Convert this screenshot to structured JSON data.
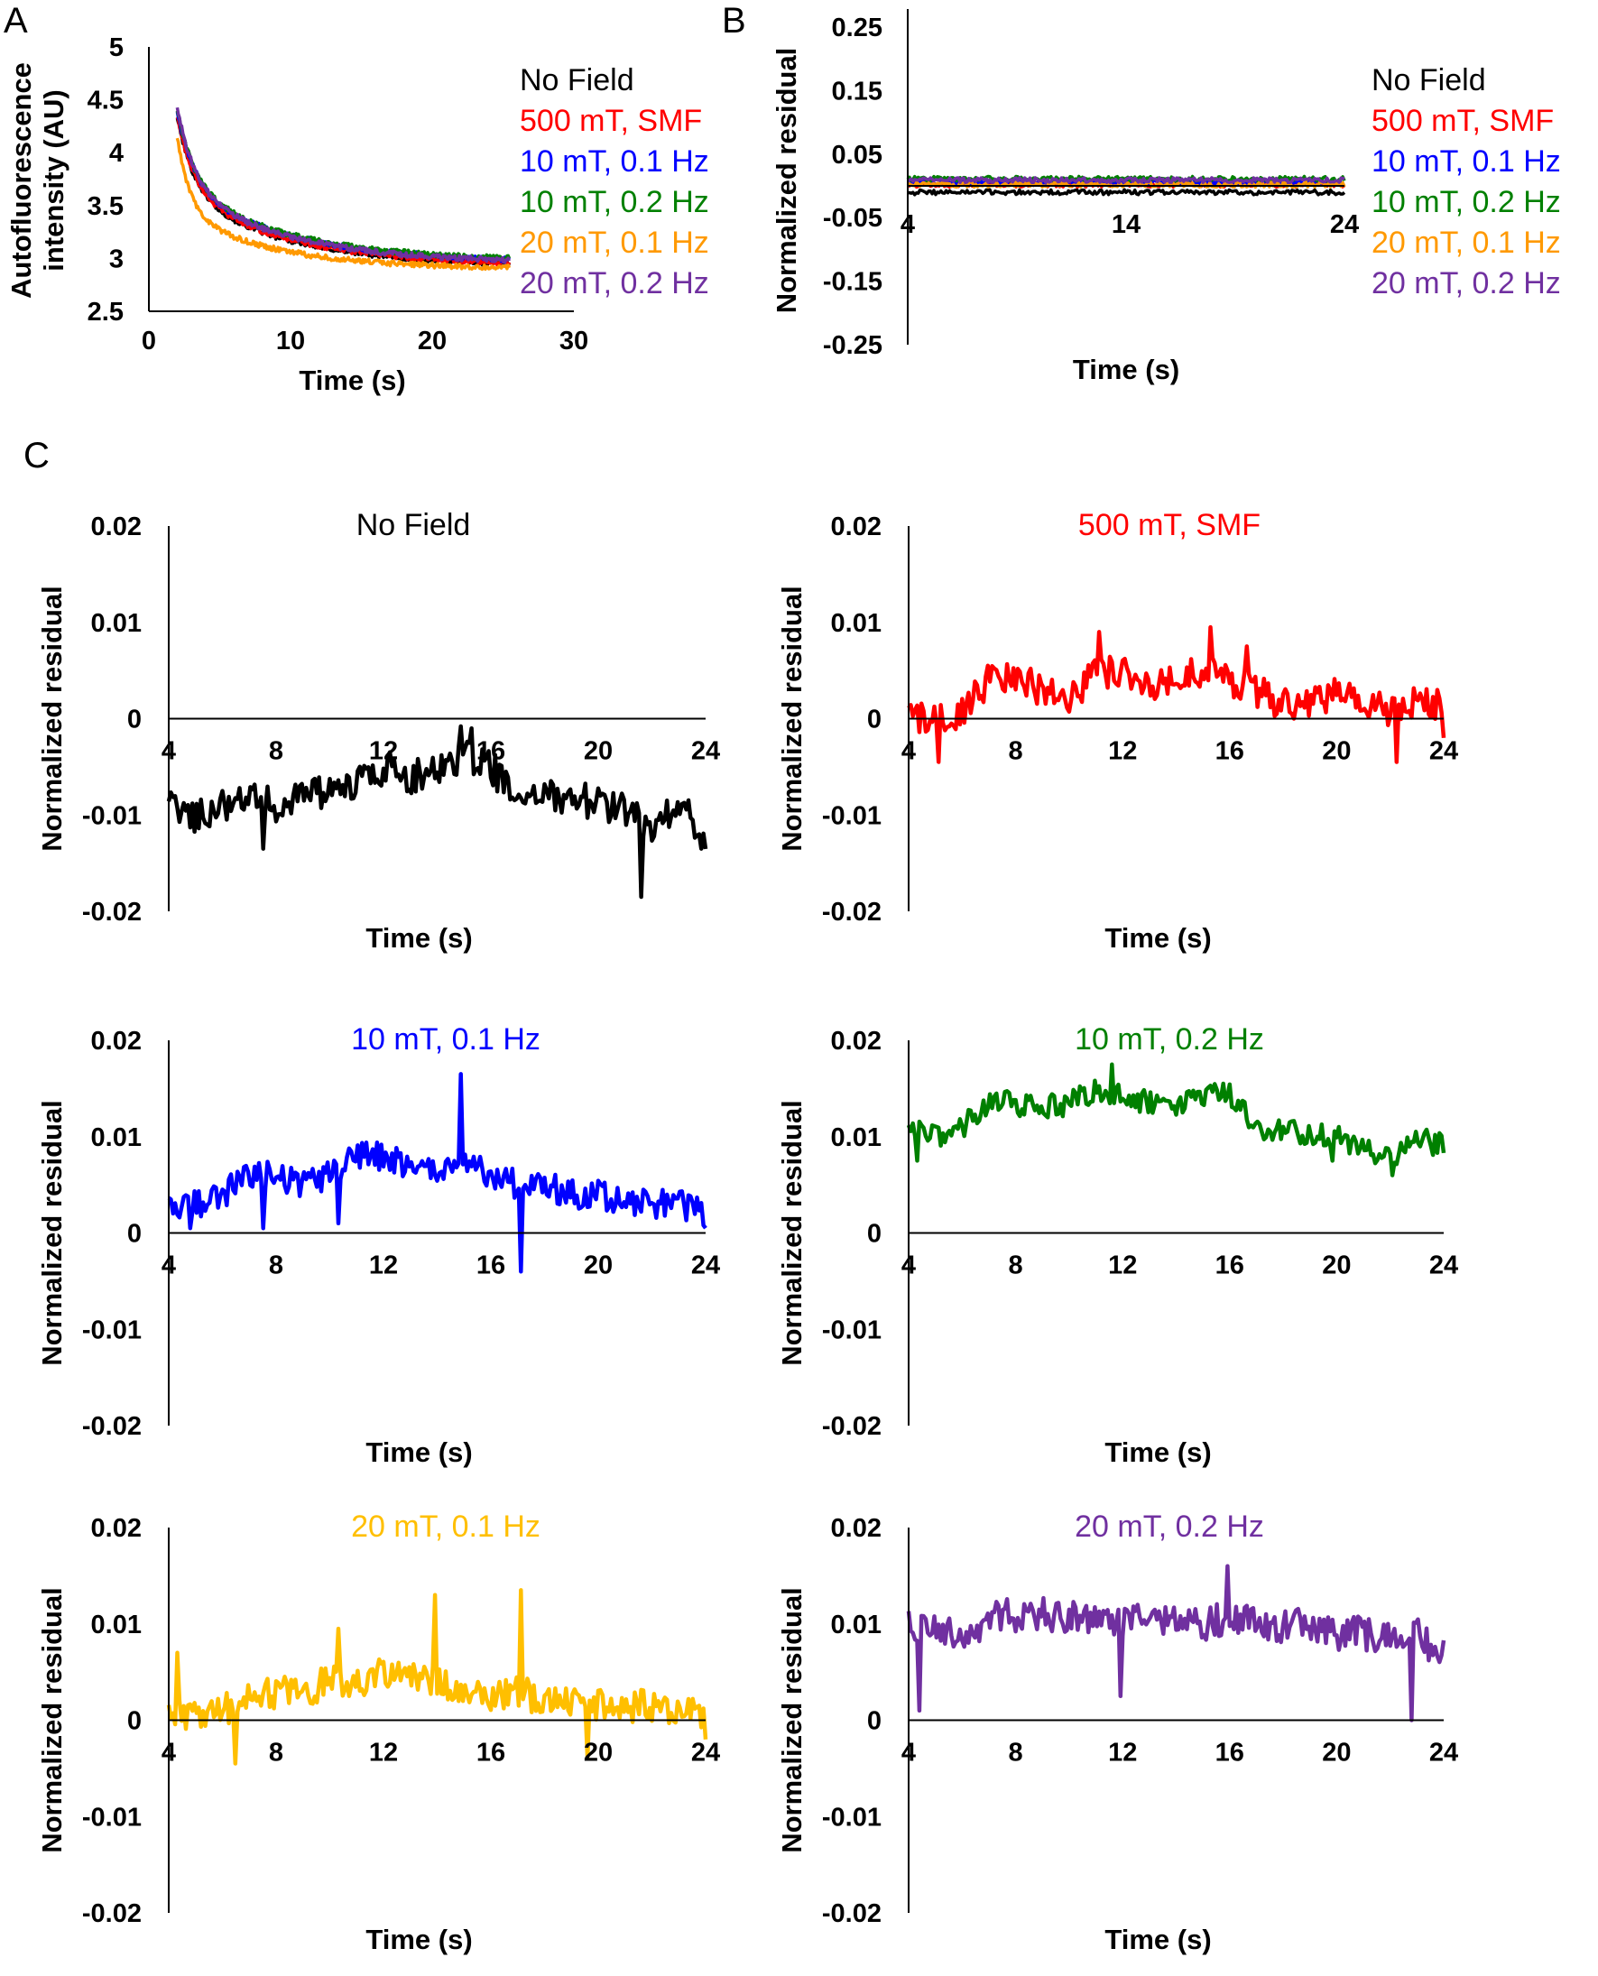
{
  "colors": {
    "no_field": "#000000",
    "smf_500": "#ff0000",
    "h10_01": "#0000ff",
    "h10_02": "#008000",
    "h20_01_panelA": "#ff9900",
    "h20_01_panelC": "#ffbf00",
    "h20_02": "#7030a0"
  },
  "chart_data": [
    {
      "panel": "A",
      "type": "line",
      "xlabel": "Time (s)",
      "ylabel_lines": [
        "Autofluorescence",
        "intensity (AU)"
      ],
      "xlim": [
        0,
        30
      ],
      "ylim": [
        2.5,
        5
      ],
      "xticks": [
        "0",
        "10",
        "20",
        "30"
      ],
      "yticks": [
        "2.5",
        "3",
        "3.5",
        "4",
        "4.5",
        "5"
      ],
      "grid": false,
      "legend_position": "right",
      "model": "decay curves from t = 2 s to t = 25.5 s; y(t) ≈ y_inf + a·exp(-t/t1) + b·exp(-t/t2)",
      "series": [
        {
          "name": "No Field",
          "colorKey": "no_field",
          "t_start": 2,
          "t_end": 25.5,
          "y_inf": 2.92,
          "a": 1.45,
          "t1": 1.2,
          "b": 0.72,
          "t2": 7.5
        },
        {
          "name": "500 mT, SMF",
          "colorKey": "smf_500",
          "t_start": 2,
          "t_end": 25.5,
          "y_inf": 2.93,
          "a": 1.45,
          "t1": 1.2,
          "b": 0.72,
          "t2": 7.5
        },
        {
          "name": "10 mT, 0.1 Hz",
          "colorKey": "h10_01",
          "t_start": 2,
          "t_end": 25.5,
          "y_inf": 2.96,
          "a": 1.45,
          "t1": 1.2,
          "b": 0.74,
          "t2": 7.5
        },
        {
          "name": "10 mT, 0.2 Hz",
          "colorKey": "h10_02",
          "t_start": 2,
          "t_end": 25.5,
          "y_inf": 2.97,
          "a": 1.45,
          "t1": 1.2,
          "b": 0.74,
          "t2": 7.5
        },
        {
          "name": "20 mT, 0.1 Hz",
          "colorKey": "h20_01_panelA",
          "t_start": 2,
          "t_end": 25.5,
          "y_inf": 2.9,
          "a": 1.45,
          "t1": 0.9,
          "b": 0.55,
          "t2": 6.5
        },
        {
          "name": "20 mT, 0.2 Hz",
          "colorKey": "h20_02",
          "t_start": 2,
          "t_end": 25.5,
          "y_inf": 2.95,
          "a": 1.55,
          "t1": 1.2,
          "b": 0.74,
          "t2": 7.5
        }
      ]
    },
    {
      "panel": "B",
      "type": "line",
      "xlabel": "Time (s)",
      "ylabel": "Normalized residual",
      "xlim": [
        4,
        24
      ],
      "ylim": [
        -0.25,
        0.25
      ],
      "xticks": [
        "4",
        "14",
        "24"
      ],
      "yticks": [
        "0.25",
        "0.15",
        "0.05",
        "-0.05",
        "-0.15",
        "-0.25"
      ],
      "grid": false,
      "legend_position": "right",
      "series": [
        {
          "name": "No Field",
          "colorKey": "no_field",
          "mean": -0.01
        },
        {
          "name": "500 mT, SMF",
          "colorKey": "smf_500",
          "mean": 0.002
        },
        {
          "name": "10 mT, 0.1 Hz",
          "colorKey": "h10_01",
          "mean": 0.005
        },
        {
          "name": "10 mT, 0.2 Hz",
          "colorKey": "h10_02",
          "mean": 0.011
        },
        {
          "name": "20 mT, 0.1 Hz",
          "colorKey": "h20_01_panelA",
          "mean": 0.002
        },
        {
          "name": "20 mT, 0.2 Hz",
          "colorKey": "h20_02",
          "mean": 0.009
        }
      ]
    },
    {
      "panel": "C",
      "type": "line",
      "xlabel": "Time (s)",
      "ylabel": "Normalized residual",
      "xlim": [
        4,
        24
      ],
      "ylim": [
        -0.02,
        0.02
      ],
      "xticks": [
        "4",
        "8",
        "12",
        "16",
        "20",
        "24"
      ],
      "yticks": [
        "0.02",
        "0.01",
        "0",
        "-0.01",
        "-0.02"
      ],
      "grid": false,
      "subplots": [
        {
          "title": "No Field",
          "colorKey": "no_field",
          "t": [
            4,
            5,
            6,
            7,
            8,
            9,
            10,
            11,
            12,
            13,
            14,
            15,
            16,
            17,
            18,
            19,
            20,
            21,
            22,
            23,
            24
          ],
          "y": [
            -0.009,
            -0.01,
            -0.009,
            -0.008,
            -0.009,
            -0.0075,
            -0.008,
            -0.007,
            -0.005,
            -0.006,
            -0.0055,
            -0.004,
            -0.005,
            -0.0085,
            -0.008,
            -0.008,
            -0.009,
            -0.0095,
            -0.011,
            -0.009,
            -0.012
          ],
          "noise": 0.0018,
          "spikes": [
            {
              "t": 7.5,
              "y": -0.0135
            },
            {
              "t": 14.9,
              "y": -0.0008
            },
            {
              "t": 15.3,
              "y": -0.001
            },
            {
              "t": 21.6,
              "y": -0.0185
            },
            {
              "t": 23.8,
              "y": -0.0135
            }
          ]
        },
        {
          "title": "500 mT, SMF",
          "colorKey": "smf_500",
          "t": [
            4,
            5,
            6,
            7,
            8,
            9,
            10,
            11,
            12,
            13,
            14,
            15,
            16,
            17,
            18,
            19,
            20,
            21,
            22,
            23,
            24
          ],
          "y": [
            0.0005,
            -0.0005,
            0.001,
            0.004,
            0.004,
            0.003,
            0.002,
            0.005,
            0.005,
            0.003,
            0.004,
            0.005,
            0.004,
            0.003,
            0.0015,
            0.002,
            0.0025,
            0.002,
            0.001,
            0.0015,
            0.0015
          ],
          "noise": 0.0018,
          "spikes": [
            {
              "t": 5.1,
              "y": -0.0045
            },
            {
              "t": 11.1,
              "y": 0.009
            },
            {
              "t": 15.3,
              "y": 0.0095
            },
            {
              "t": 16.6,
              "y": 0.0075
            },
            {
              "t": 22.2,
              "y": -0.0045
            },
            {
              "t": 24,
              "y": -0.002
            }
          ]
        },
        {
          "title": "10 mT, 0.1 Hz",
          "colorKey": "h10_01",
          "t": [
            4,
            5,
            6,
            7,
            8,
            9,
            10,
            11,
            12,
            13,
            14,
            15,
            16,
            17,
            18,
            19,
            20,
            21,
            22,
            23,
            24
          ],
          "y": [
            0.003,
            0.003,
            0.004,
            0.006,
            0.006,
            0.005,
            0.006,
            0.008,
            0.008,
            0.007,
            0.006,
            0.0075,
            0.006,
            0.005,
            0.005,
            0.004,
            0.004,
            0.003,
            0.003,
            0.003,
            0.002
          ],
          "noise": 0.0015,
          "spikes": [
            {
              "t": 4.8,
              "y": 0.0005
            },
            {
              "t": 7.5,
              "y": 0.0005
            },
            {
              "t": 10.3,
              "y": 0.001
            },
            {
              "t": 14.9,
              "y": 0.0165
            },
            {
              "t": 17.1,
              "y": -0.004
            },
            {
              "t": 24,
              "y": 0.0005
            }
          ]
        },
        {
          "title": "10 mT, 0.2 Hz",
          "colorKey": "h10_02",
          "t": [
            4,
            5,
            6,
            7,
            8,
            9,
            10,
            11,
            12,
            13,
            14,
            15,
            16,
            17,
            18,
            19,
            20,
            21,
            22,
            23,
            24
          ],
          "y": [
            0.0105,
            0.01,
            0.011,
            0.0135,
            0.0135,
            0.013,
            0.0135,
            0.015,
            0.014,
            0.0135,
            0.013,
            0.014,
            0.0145,
            0.011,
            0.0105,
            0.0105,
            0.01,
            0.0085,
            0.0075,
            0.01,
            0.009
          ],
          "noise": 0.0013,
          "spikes": [
            {
              "t": 4.3,
              "y": 0.0075
            },
            {
              "t": 11.6,
              "y": 0.0175
            },
            {
              "t": 19.8,
              "y": 0.0075
            },
            {
              "t": 22.1,
              "y": 0.006
            }
          ]
        },
        {
          "title": "20 mT, 0.1 Hz",
          "colorKey": "h20_01_panelC",
          "t": [
            4,
            5,
            6,
            7,
            8,
            9,
            10,
            11,
            12,
            13,
            14,
            15,
            16,
            17,
            18,
            19,
            20,
            21,
            22,
            23,
            24
          ],
          "y": [
            0.0005,
            0.0005,
            0.001,
            0.002,
            0.003,
            0.003,
            0.004,
            0.004,
            0.005,
            0.0045,
            0.004,
            0.003,
            0.0025,
            0.003,
            0.002,
            0.002,
            0.0015,
            0.0015,
            0.0015,
            0.001,
            0.0005
          ],
          "noise": 0.0017,
          "spikes": [
            {
              "t": 4.3,
              "y": 0.007
            },
            {
              "t": 6.5,
              "y": -0.0045
            },
            {
              "t": 10.3,
              "y": 0.0095
            },
            {
              "t": 13.9,
              "y": 0.013
            },
            {
              "t": 17.1,
              "y": 0.0135
            },
            {
              "t": 19.6,
              "y": -0.004
            },
            {
              "t": 24,
              "y": -0.002
            }
          ]
        },
        {
          "title": "20 mT, 0.2 Hz",
          "colorKey": "h20_02",
          "t": [
            4,
            5,
            6,
            7,
            8,
            9,
            10,
            11,
            12,
            13,
            14,
            15,
            16,
            17,
            18,
            19,
            20,
            21,
            22,
            23,
            24
          ],
          "y": [
            0.01,
            0.0095,
            0.009,
            0.0105,
            0.011,
            0.011,
            0.0105,
            0.0105,
            0.01,
            0.0105,
            0.011,
            0.01,
            0.0105,
            0.01,
            0.0095,
            0.01,
            0.009,
            0.009,
            0.0085,
            0.009,
            0.0065
          ],
          "noise": 0.0018,
          "spikes": [
            {
              "t": 4.4,
              "y": 0.001
            },
            {
              "t": 11.9,
              "y": 0.0025
            },
            {
              "t": 15.9,
              "y": 0.016
            },
            {
              "t": 22.8,
              "y": 0
            }
          ]
        }
      ]
    }
  ],
  "labels": {
    "panelA": "A",
    "panelB": "B",
    "panelC": "C"
  }
}
